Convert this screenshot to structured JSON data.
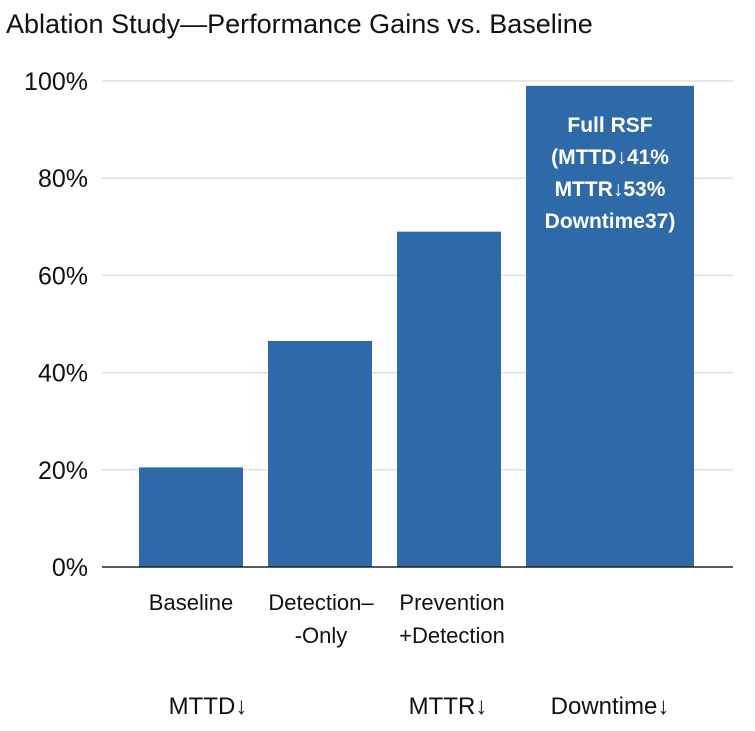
{
  "chart_data": {
    "type": "bar",
    "title": "Ablation Study—Performance Gains vs. Baseline",
    "categories": [
      [
        "Baseline"
      ],
      [
        "Detection–",
        "-Only"
      ],
      [
        "Prevention",
        "+Detection"
      ],
      []
    ],
    "values": [
      20.5,
      46.5,
      69,
      99
    ],
    "yticks": [
      "0%",
      "20%",
      "40%",
      "60%",
      "80%",
      "100%"
    ],
    "ylim": [
      0,
      100
    ],
    "bar_color": "#2e6aa7",
    "bar_annotation": {
      "bar_index": 3,
      "lines": [
        "Full RSF",
        "(MTTD↓41%",
        "MTTR↓53%",
        "Downtime37)"
      ]
    },
    "metric_labels": [
      {
        "text": "MTTD↓",
        "under_index": 0
      },
      {
        "text": "MTTR↓",
        "under_index": 2
      },
      {
        "text": "Downtime↓",
        "under_index": 3
      }
    ],
    "xlabel": "",
    "ylabel": "",
    "grid": true
  }
}
